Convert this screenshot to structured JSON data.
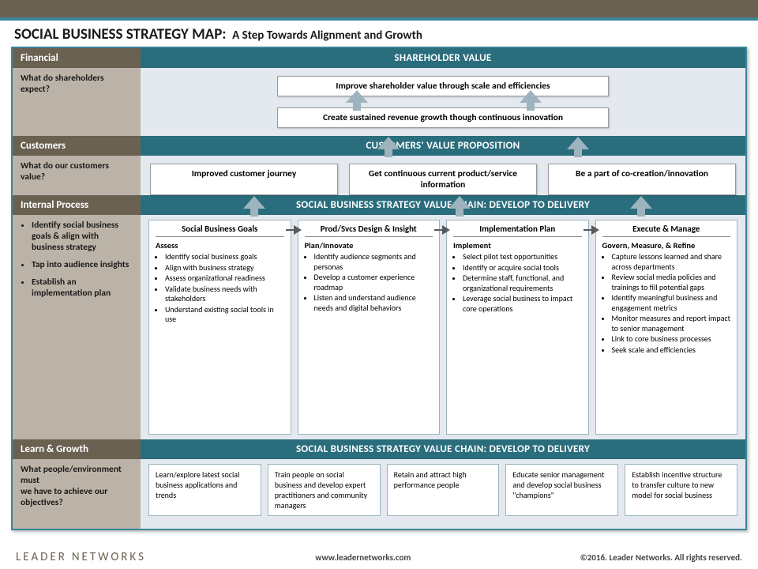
{
  "colors": {
    "topbar": "#6a6151",
    "accent": "#3a8699",
    "teal_header": "#2a6d7d",
    "body_bg": "#e4e9ef",
    "side_body": "#bbb3a7",
    "arrow": "#9db3bd"
  },
  "title": {
    "main": "SOCIAL BUSINESS STRATEGY MAP:",
    "sub": "A Step Towards Alignment and Growth"
  },
  "rows": {
    "financial": {
      "label": "Financial",
      "side": "What do shareholders expect?",
      "header": "SHAREHOLDER VALUE",
      "goals": [
        "Improve shareholder value through scale and efficiencies",
        "Create sustained revenue growth though continuous innovation"
      ]
    },
    "customers": {
      "label": "Customers",
      "side": "What do our customers value?",
      "header": "CUSTOMERS' VALUE PROPOSITION",
      "goals": [
        "Improved customer journey",
        "Get continuous current product/service information",
        "Be a part of co-creation/innovation"
      ]
    },
    "internal": {
      "label": "Internal Process",
      "side_bullets": [
        "Identify social business goals & align with business strategy",
        "Tap into audience insights",
        "Establish an implementation plan"
      ],
      "header": "SOCIAL BUSINESS STRATEGY VALUE CHAIN: DEVELOP TO DELIVERY",
      "chain": [
        {
          "title": "Social Business Goals",
          "sub": "Assess",
          "items": [
            "Identify social business goals",
            "Align with business strategy",
            "Assess organizational readiness",
            "Validate business needs with stakeholders",
            "Understand existing social tools in use"
          ]
        },
        {
          "title": "Prod/Svcs Design & Insight",
          "sub": "Plan/Innovate",
          "items": [
            "Identify audience segments and personas",
            "Develop a customer experience roadmap",
            "Listen and understand audience needs and digital behaviors"
          ]
        },
        {
          "title": "Implementation Plan",
          "sub": "Implement",
          "items": [
            "Select pilot test opportunities",
            "Identify or acquire social tools",
            "Determine staff, functional, and organizational requirements",
            "Leverage social business to impact core operations"
          ]
        },
        {
          "title": "Execute & Manage",
          "sub": "Govern, Measure, & Refine",
          "items": [
            "Capture lessons learned and share across departments",
            "Review social media policies and trainings to fill potential gaps",
            "Identify meaningful business and engagement metrics",
            "Monitor measures and report impact to senior management",
            "Link to core business processes",
            "Seek scale and efficiencies"
          ]
        }
      ]
    },
    "learn": {
      "label": "Learn & Growth",
      "side": "What people/environment must\nwe have to achieve our objectives?",
      "header": "SOCIAL BUSINESS STRATEGY VALUE CHAIN: DEVELOP TO DELIVERY",
      "items": [
        "Learn/explore latest social business applications and trends",
        "Train people on social business and develop expert practitioners and community managers",
        "Retain and attract high performance people",
        "Educate senior management and develop social business \"champions\"",
        "Establish incentive structure to transfer culture to new model for social business"
      ]
    }
  },
  "footer": {
    "logo1": "LEADER",
    "logo2": "NETWORKS",
    "url": "www.leadernetworks.com",
    "copy": "©2016. Leader Networks. All rights reserved."
  }
}
